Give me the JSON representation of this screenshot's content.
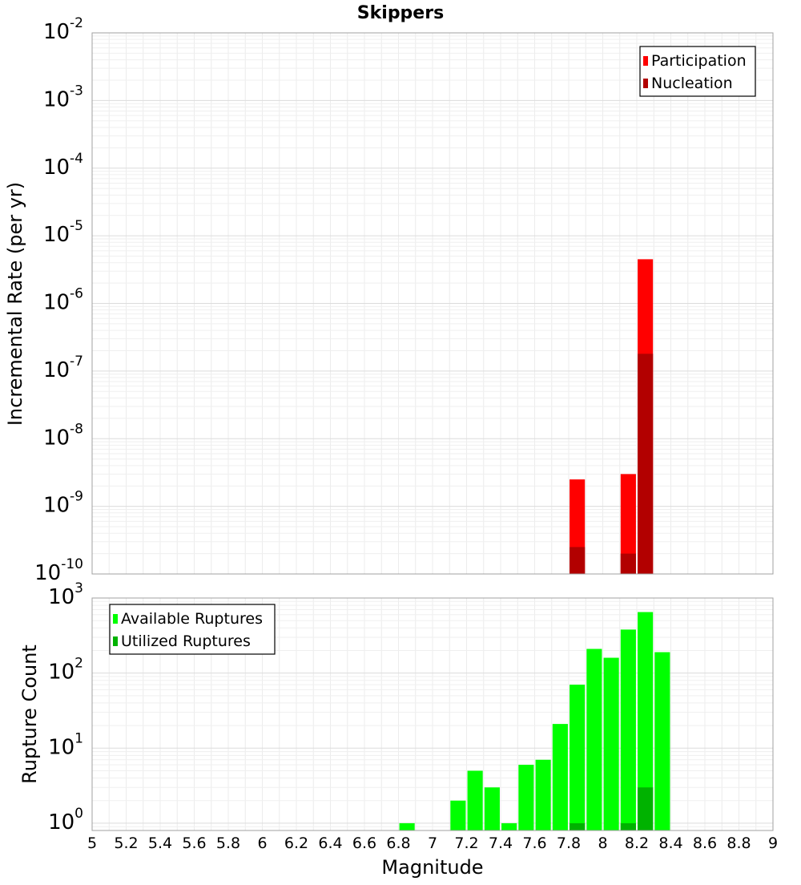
{
  "chart_data": [
    {
      "type": "bar",
      "title": "Skippers",
      "ylabel": "Incremental Rate (per yr)",
      "xlabel": "",
      "yscale": "log",
      "ylim": [
        1e-10,
        0.01
      ],
      "xlim": [
        5,
        9
      ],
      "y_tick_labels": [
        {
          "value": 1e-10,
          "base": "10",
          "exp": "-10"
        },
        {
          "value": 1e-09,
          "base": "10",
          "exp": "-9"
        },
        {
          "value": 1e-08,
          "base": "10",
          "exp": "-8"
        },
        {
          "value": 1e-07,
          "base": "10",
          "exp": "-7"
        },
        {
          "value": 1e-06,
          "base": "10",
          "exp": "-6"
        },
        {
          "value": 1e-05,
          "base": "10",
          "exp": "-5"
        },
        {
          "value": 0.0001,
          "base": "10",
          "exp": "-4"
        },
        {
          "value": 0.001,
          "base": "10",
          "exp": "-3"
        },
        {
          "value": 0.01,
          "base": "10",
          "exp": "-2"
        }
      ],
      "legend": {
        "position": "top-right",
        "items": [
          {
            "label": "Participation",
            "color": "#ff0000"
          },
          {
            "label": "Nucleation",
            "color": "#b20000"
          }
        ]
      },
      "grid": true,
      "series": [
        {
          "name": "Participation",
          "color": "#ff0000",
          "x": [
            7.85,
            8.15,
            8.25
          ],
          "values": [
            2.5e-09,
            3e-09,
            4.5e-06
          ]
        },
        {
          "name": "Nucleation",
          "color": "#b20000",
          "x": [
            7.85,
            8.15,
            8.25
          ],
          "values": [
            2.5e-10,
            2e-10,
            1.8e-07
          ]
        }
      ]
    },
    {
      "type": "bar",
      "title": "",
      "ylabel": "Rupture Count",
      "xlabel": "Magnitude",
      "yscale": "log",
      "ylim": [
        0.8,
        1000
      ],
      "xlim": [
        5,
        9
      ],
      "y_tick_labels": [
        {
          "value": 1,
          "base": "10",
          "exp": "0"
        },
        {
          "value": 10,
          "base": "10",
          "exp": "1"
        },
        {
          "value": 100,
          "base": "10",
          "exp": "2"
        },
        {
          "value": 1000,
          "base": "10",
          "exp": "3"
        }
      ],
      "x_tick_labels": [
        "5",
        "5.2",
        "5.4",
        "5.6",
        "5.8",
        "6",
        "6.2",
        "6.4",
        "6.6",
        "6.8",
        "7",
        "7.2",
        "7.4",
        "7.6",
        "7.8",
        "8",
        "8.2",
        "8.4",
        "8.6",
        "8.8",
        "9"
      ],
      "legend": {
        "position": "top-left",
        "items": [
          {
            "label": "Available Ruptures",
            "color": "#00ff00"
          },
          {
            "label": "Utilized Ruptures",
            "color": "#00b200"
          }
        ]
      },
      "grid": true,
      "series": [
        {
          "name": "Available Ruptures",
          "color": "#00ff00",
          "x": [
            6.85,
            7.15,
            7.25,
            7.35,
            7.45,
            7.55,
            7.65,
            7.75,
            7.85,
            7.95,
            8.05,
            8.15,
            8.25,
            8.35
          ],
          "values": [
            1,
            2,
            5,
            3,
            1,
            6,
            7,
            21,
            70,
            210,
            160,
            380,
            650,
            190
          ]
        },
        {
          "name": "Utilized Ruptures",
          "color": "#00b200",
          "x": [
            7.85,
            8.15,
            8.25
          ],
          "values": [
            1,
            1,
            3
          ]
        }
      ]
    }
  ]
}
